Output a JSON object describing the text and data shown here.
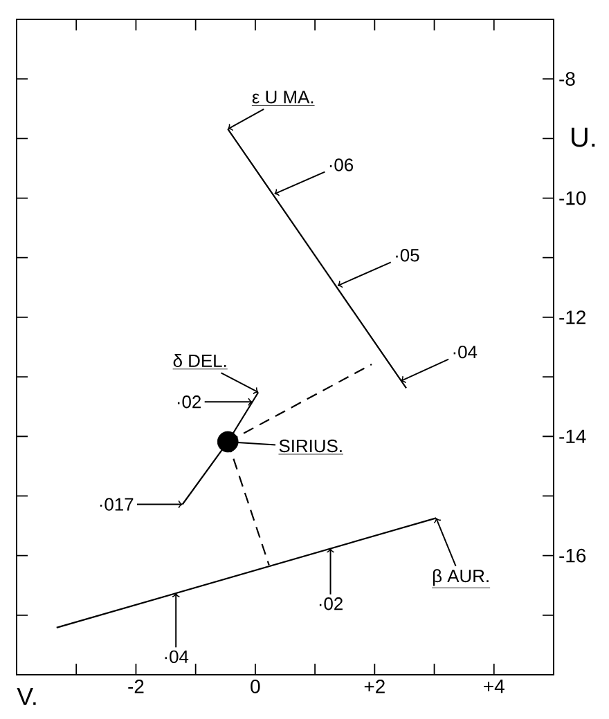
{
  "chart_data": {
    "type": "line",
    "xlabel": "V.",
    "ylabel": "U.",
    "xlim": [
      -4,
      5
    ],
    "ylim": [
      -18,
      -7
    ],
    "xticks": [
      {
        "value": -3,
        "label": null
      },
      {
        "value": -2,
        "label": "-2"
      },
      {
        "value": -1,
        "label": null
      },
      0,
      {
        "value": 1,
        "label": null
      },
      {
        "value": 2,
        "label": "+2"
      },
      {
        "value": 3,
        "label": null
      },
      {
        "value": 4,
        "label": "+4"
      }
    ],
    "yticks": [
      {
        "value": -17,
        "label": null
      },
      -16,
      {
        "value": -15,
        "label": null
      },
      -14,
      {
        "value": -13,
        "label": null
      },
      -12,
      {
        "value": -11,
        "label": null
      },
      -10,
      {
        "value": -9,
        "label": null
      },
      -8
    ],
    "grid": false,
    "series": [
      {
        "type": "line",
        "color": "#000000",
        "line_style": "solid",
        "x": [
          -0.46,
          2.53
        ],
        "values": [
          -8.84,
          -13.19
        ]
      },
      {
        "type": "line",
        "color": "#000000",
        "line_style": "solid",
        "x": [
          0.05,
          -0.46,
          -1.22
        ],
        "values": [
          -13.26,
          -14.09,
          -15.14
        ]
      },
      {
        "type": "line",
        "color": "#000000",
        "line_style": "solid",
        "x": [
          -3.33,
          3.03
        ],
        "values": [
          -17.21,
          -15.37
        ]
      },
      {
        "type": "line",
        "color": "#000000",
        "line_style": "dashed",
        "x": [
          -0.46,
          1.95
        ],
        "values": [
          -14.09,
          -12.79
        ]
      },
      {
        "type": "line",
        "color": "#000000",
        "line_style": "dashed",
        "x": [
          -0.46,
          0.23
        ],
        "values": [
          -14.09,
          -16.16
        ]
      },
      {
        "type": "scatter",
        "color": "#000000",
        "marker": "circle",
        "x": [
          -0.46
        ],
        "values": [
          -14.09
        ]
      }
    ],
    "annotations": [
      {
        "text": "ε U MA.",
        "x": -0.46,
        "y": -8.84
      },
      {
        "text": "·06",
        "x": 0.32,
        "y": -9.93
      },
      {
        "text": "·05",
        "x": 1.38,
        "y": -11.47
      },
      {
        "text": "·04",
        "x": 2.44,
        "y": -13.07
      },
      {
        "text": "δ DEL.",
        "x": 0.05,
        "y": -13.26
      },
      {
        "text": "·02",
        "x": -0.05,
        "y": -13.42
      },
      {
        "text": "SIRIUS.",
        "x": -0.46,
        "y": -14.09
      },
      {
        "text": "·017",
        "x": -1.22,
        "y": -15.14
      },
      {
        "text": "β AUR.",
        "x": 3.03,
        "y": -15.37
      },
      {
        "text": "·02",
        "x": 1.26,
        "y": -15.88
      },
      {
        "text": "·04",
        "x": -1.33,
        "y": -16.63
      }
    ]
  }
}
